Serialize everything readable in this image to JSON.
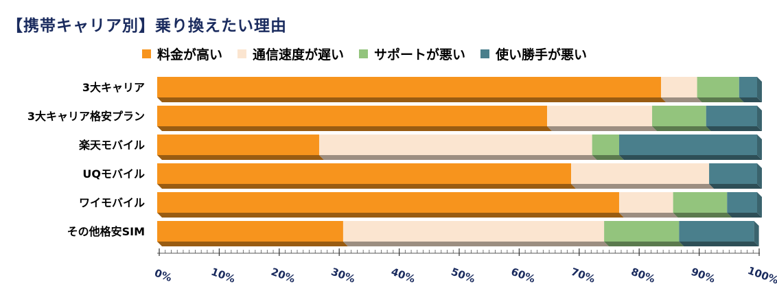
{
  "chart_data": {
    "type": "bar",
    "orientation": "horizontal",
    "stacked": true,
    "title": "【携帯キャリア別】乗り換えたい理由",
    "categories": [
      "3大キャリア",
      "3大キャリア格安プラン",
      "楽天モバイル",
      "UQモバイル",
      "ワイモバイル",
      "その他格安SIM"
    ],
    "series": [
      {
        "name": "料金が高い",
        "color": "#f7941d",
        "values": [
          84,
          65,
          27,
          69,
          77,
          31
        ]
      },
      {
        "name": "通信速度が遅い",
        "color": "#fbe5d0",
        "values": [
          6,
          17.5,
          45.5,
          23,
          9,
          43.5
        ]
      },
      {
        "name": "サポートが悪い",
        "color": "#93c47d",
        "values": [
          7,
          9,
          4.5,
          0,
          9,
          12.5
        ]
      },
      {
        "name": "使い勝手が悪い",
        "color": "#4a7f8c",
        "values": [
          3,
          8.5,
          23,
          8,
          5,
          12.5
        ]
      }
    ],
    "x_ticks": [
      "0%",
      "10%",
      "20%",
      "30%",
      "40%",
      "50%",
      "60%",
      "70%",
      "80%",
      "90%",
      "100%"
    ],
    "xlim": [
      0,
      100
    ],
    "legend_position": "top",
    "grid": false
  }
}
